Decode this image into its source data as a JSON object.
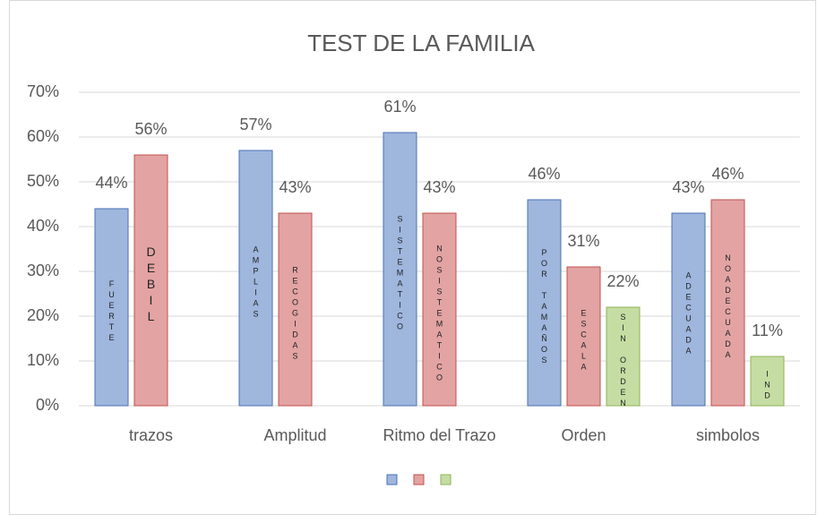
{
  "chart_data": {
    "type": "bar",
    "title": "TEST DE LA FAMILIA",
    "categories": [
      "trazos",
      "Amplitud",
      "Ritmo del Trazo",
      "Orden",
      "simbolos"
    ],
    "series": [
      {
        "color": "#9fb6dd",
        "values": [
          44,
          57,
          61,
          46,
          43
        ],
        "value_labels": [
          "44%",
          "57%",
          "61%",
          "46%",
          "43%"
        ],
        "bar_texts": [
          "FUERTE",
          "AMPLIAS",
          "SISTEMATICO",
          "POR TAMAÑOS",
          "ADECUADA"
        ]
      },
      {
        "color": "#e3a3a3",
        "values": [
          56,
          43,
          43,
          31,
          46
        ],
        "value_labels": [
          "56%",
          "43%",
          "43%",
          "31%",
          "46%"
        ],
        "bar_texts": [
          "DEBIL",
          "RECOGIDAS",
          "NOSISTEMATICO",
          "ESCALA",
          "NOADECUADA"
        ]
      },
      {
        "color": "#c5dca3",
        "values": [
          null,
          null,
          null,
          22,
          11
        ],
        "value_labels": [
          null,
          null,
          null,
          "22%",
          "11%"
        ],
        "bar_texts": [
          null,
          null,
          null,
          "SIN ORDEN",
          "IND"
        ]
      }
    ],
    "ylim": [
      0,
      70
    ],
    "yticks": [
      {
        "value": 0,
        "label": "0%"
      },
      {
        "value": 10,
        "label": "10%"
      },
      {
        "value": 20,
        "label": "20%"
      },
      {
        "value": 30,
        "label": "30%"
      },
      {
        "value": 40,
        "label": "40%"
      },
      {
        "value": 50,
        "label": "50%"
      },
      {
        "value": 60,
        "label": "60%"
      },
      {
        "value": 70,
        "label": "70%"
      }
    ],
    "grid": true
  }
}
